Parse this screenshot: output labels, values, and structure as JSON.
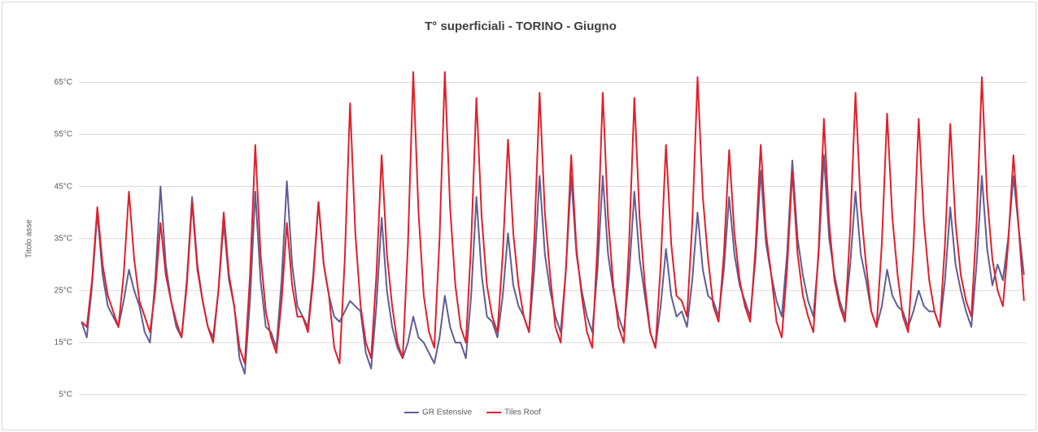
{
  "chart_data": {
    "type": "line",
    "title": "T° superficiali - TORINO - Giugno",
    "y_label": "Titolo asse",
    "categories": [
      null,
      null,
      null,
      null,
      null,
      null,
      null,
      null,
      null,
      null,
      null,
      null,
      null,
      null,
      null,
      null,
      null,
      null,
      null,
      null,
      null,
      null,
      null,
      null,
      null,
      null,
      null,
      null,
      null,
      null,
      null,
      null,
      null,
      null,
      null,
      null,
      null,
      null,
      null,
      null,
      null,
      null,
      null,
      null,
      null,
      null,
      null,
      null,
      null,
      null,
      null,
      null,
      null,
      null,
      null,
      null,
      null,
      null,
      null,
      null,
      null,
      null,
      null,
      null,
      null,
      null,
      null,
      null,
      null,
      null,
      null,
      null,
      null,
      null,
      null,
      null,
      null,
      null,
      null,
      null,
      null,
      null,
      null,
      null,
      null,
      null,
      null,
      null,
      null,
      null,
      null,
      null,
      null,
      null,
      null,
      null,
      null,
      null,
      null,
      null,
      null,
      null,
      null,
      null,
      null,
      null,
      null,
      null,
      null,
      null,
      null,
      null,
      null,
      null,
      null,
      null,
      null,
      null,
      null,
      null,
      null,
      null,
      null,
      null,
      null,
      null,
      null,
      null,
      null,
      null,
      null,
      null,
      null,
      null,
      null,
      null,
      null,
      null,
      null,
      null,
      null,
      null,
      null,
      null,
      null,
      null,
      null,
      null,
      null,
      null,
      null,
      null,
      null,
      null,
      null,
      null,
      null,
      null,
      null,
      null,
      null,
      null,
      null,
      null,
      null,
      null,
      null,
      null,
      null,
      null,
      null,
      null,
      null,
      null,
      null,
      null,
      null,
      null,
      null,
      null
    ],
    "series": [
      {
        "name": "GR Estensive",
        "color": "#5f5e94",
        "values": [
          19,
          16,
          26,
          40,
          28,
          22,
          20,
          18,
          23,
          29,
          25,
          22,
          17,
          15,
          27,
          45,
          30,
          23,
          18,
          16,
          27,
          43,
          30,
          23,
          18,
          16,
          25,
          38,
          27,
          22,
          12,
          9,
          23,
          44,
          27,
          18,
          17,
          14,
          27,
          46,
          30,
          22,
          20,
          18,
          28,
          42,
          30,
          24,
          20,
          19,
          21,
          23,
          22,
          21,
          13,
          10,
          22,
          39,
          25,
          18,
          14,
          12,
          15,
          20,
          16,
          15,
          13,
          11,
          16,
          24,
          18,
          15,
          15,
          12,
          24,
          43,
          28,
          20,
          19,
          16,
          24,
          36,
          26,
          22,
          20,
          17,
          29,
          47,
          32,
          25,
          20,
          17,
          29,
          47,
          32,
          25,
          20,
          17,
          29,
          47,
          32,
          25,
          20,
          17,
          28,
          44,
          31,
          24,
          17,
          14,
          22,
          33,
          24,
          20,
          21,
          18,
          27,
          40,
          29,
          24,
          23,
          20,
          29,
          43,
          32,
          26,
          23,
          20,
          31,
          48,
          34,
          28,
          23,
          20,
          32,
          50,
          35,
          28,
          23,
          20,
          32,
          51,
          35,
          28,
          23,
          20,
          30,
          44,
          32,
          27,
          21,
          18,
          22,
          29,
          24,
          22,
          21,
          18,
          21,
          25,
          22,
          21,
          21,
          18,
          27,
          41,
          30,
          25,
          21,
          18,
          30,
          47,
          33,
          26,
          30,
          27,
          35,
          47,
          37,
          28
        ]
      },
      {
        "name": "Tiles Roof",
        "color": "#e0202a",
        "values": [
          19,
          18,
          27,
          41,
          30,
          24,
          21,
          18,
          28,
          44,
          31,
          23,
          20,
          17,
          25,
          38,
          28,
          23,
          19,
          16,
          26,
          42,
          29,
          23,
          18,
          15,
          25,
          40,
          28,
          22,
          14,
          11,
          28,
          53,
          32,
          21,
          16,
          13,
          23,
          38,
          26,
          20,
          20,
          17,
          27,
          42,
          30,
          24,
          14,
          11,
          31,
          61,
          36,
          22,
          15,
          12,
          28,
          51,
          32,
          22,
          15,
          12,
          34,
          67,
          40,
          24,
          17,
          14,
          35,
          67,
          41,
          26,
          18,
          15,
          34,
          62,
          39,
          26,
          20,
          17,
          32,
          54,
          36,
          26,
          20,
          17,
          35,
          63,
          40,
          28,
          18,
          15,
          29,
          51,
          33,
          24,
          17,
          14,
          34,
          63,
          39,
          26,
          18,
          15,
          34,
          62,
          39,
          26,
          17,
          14,
          30,
          53,
          34,
          24,
          23,
          20,
          38,
          66,
          43,
          31,
          22,
          19,
          32,
          52,
          36,
          27,
          22,
          19,
          33,
          53,
          36,
          28,
          19,
          16,
          29,
          48,
          32,
          24,
          20,
          17,
          33,
          58,
          38,
          27,
          22,
          19,
          37,
          63,
          41,
          30,
          21,
          18,
          34,
          59,
          39,
          28,
          20,
          17,
          33,
          58,
          38,
          27,
          21,
          18,
          34,
          57,
          38,
          28,
          23,
          20,
          38,
          66,
          43,
          31,
          25,
          22,
          34,
          51,
          37,
          23
        ]
      }
    ],
    "ylim": [
      5,
      70
    ],
    "yticks": [
      {
        "value": 5,
        "label": "5°C"
      },
      {
        "value": 15,
        "label": "15°C"
      },
      {
        "value": 25,
        "label": "25°C"
      },
      {
        "value": 35,
        "label": "35°C"
      },
      {
        "value": 45,
        "label": "45°C"
      },
      {
        "value": 55,
        "label": "55°C"
      },
      {
        "value": 65,
        "label": "65°C"
      }
    ],
    "grid": true,
    "legend": "bottom"
  }
}
